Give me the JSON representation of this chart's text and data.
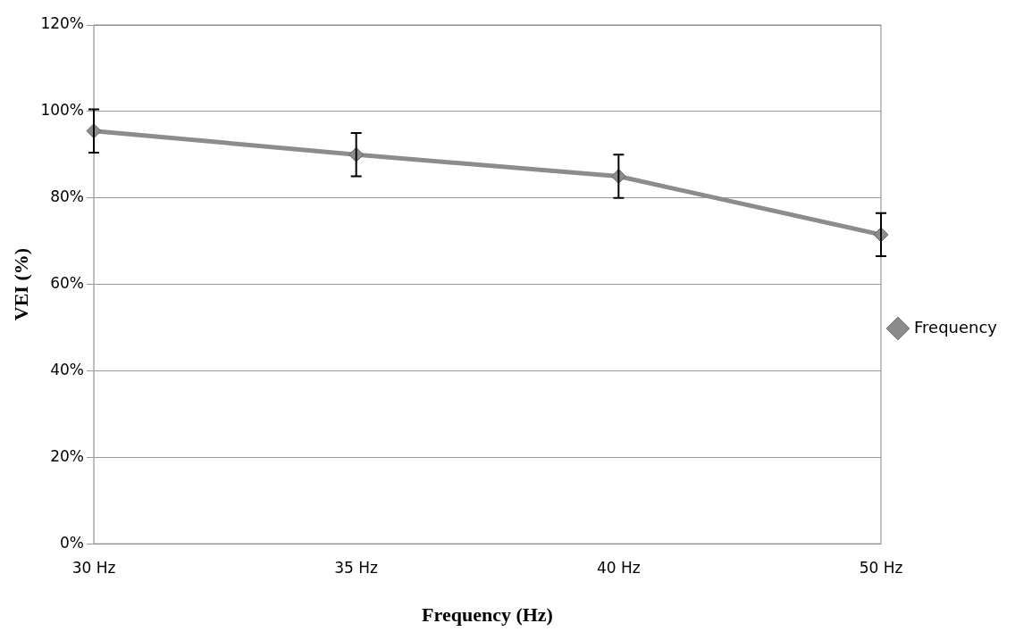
{
  "chart_data": {
    "type": "line",
    "xlabel": "Frequency (Hz)",
    "ylabel": "VEI (%)",
    "categories": [
      "30 Hz",
      "35 Hz",
      "40 Hz",
      "50 Hz"
    ],
    "series": [
      {
        "name": "Frequency",
        "color": "#8c8c8c",
        "values": [
          95.5,
          90,
          85,
          71.5
        ],
        "errors": [
          5,
          5,
          5,
          5
        ]
      }
    ],
    "ylim": [
      0,
      120
    ],
    "yticks": [
      {
        "value": 0,
        "label": "0%"
      },
      {
        "value": 20,
        "label": "20%"
      },
      {
        "value": 40,
        "label": "40%"
      },
      {
        "value": 60,
        "label": "60%"
      },
      {
        "value": 80,
        "label": "80%"
      },
      {
        "value": 100,
        "label": "100%"
      },
      {
        "value": 120,
        "label": "120%"
      }
    ],
    "grid": "y",
    "legend": "right",
    "marker": "diamond",
    "line_style": "solid"
  }
}
